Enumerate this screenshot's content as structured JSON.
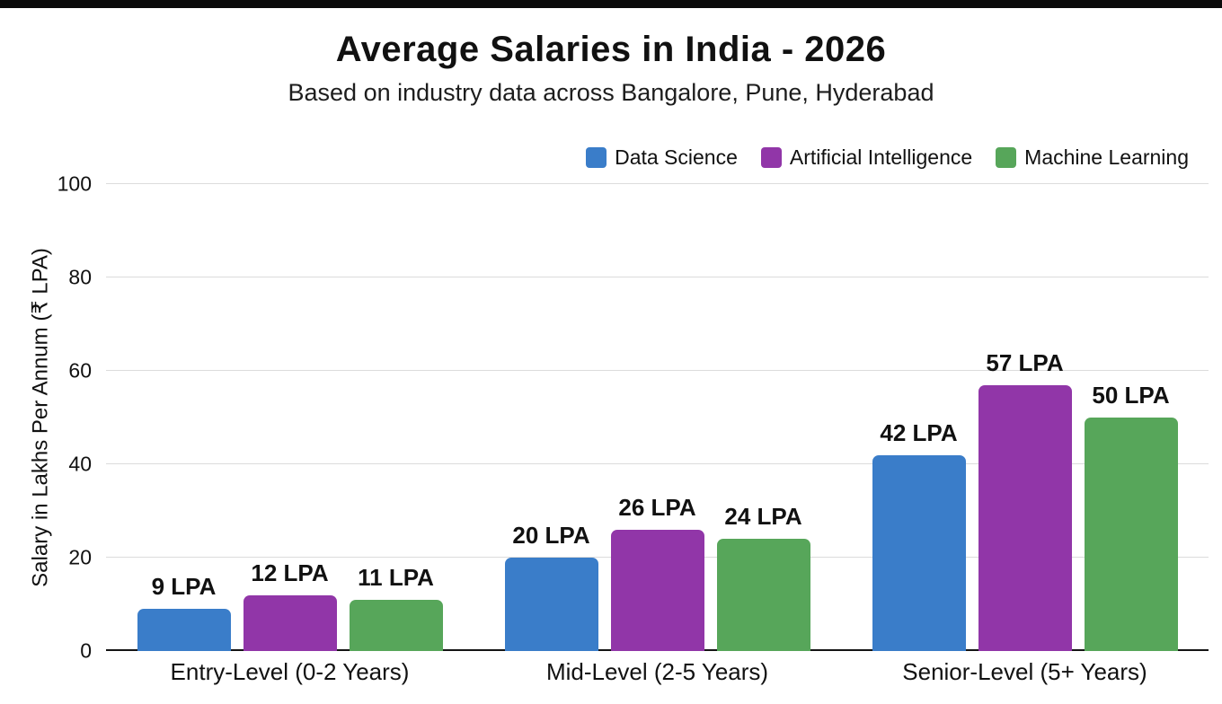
{
  "page": {
    "background": "#ffffff",
    "top_strip_color": "#0b0b0b"
  },
  "chart_data": {
    "type": "bar",
    "title": "Average Salaries in India - 2026",
    "subtitle": "Based on industry data across Bangalore, Pune, Hyderabad",
    "ylabel": "Salary in Lakhs Per Annum (₹ LPA)",
    "xlabel": "",
    "ylim": [
      0,
      100
    ],
    "yticks": [
      0,
      20,
      40,
      60,
      80,
      100
    ],
    "grid": true,
    "legend_position": "top-right",
    "value_suffix": " LPA",
    "categories": [
      "Entry-Level (0-2 Years)",
      "Mid-Level (2-5 Years)",
      "Senior-Level (5+ Years)"
    ],
    "series": [
      {
        "name": "Data Science",
        "color": "#3a7dc9",
        "values": [
          9,
          20,
          42
        ]
      },
      {
        "name": "Artificial Intelligence",
        "color": "#9136a8",
        "values": [
          12,
          26,
          57
        ]
      },
      {
        "name": "Machine Learning",
        "color": "#57a65a",
        "values": [
          11,
          24,
          50
        ]
      }
    ]
  }
}
